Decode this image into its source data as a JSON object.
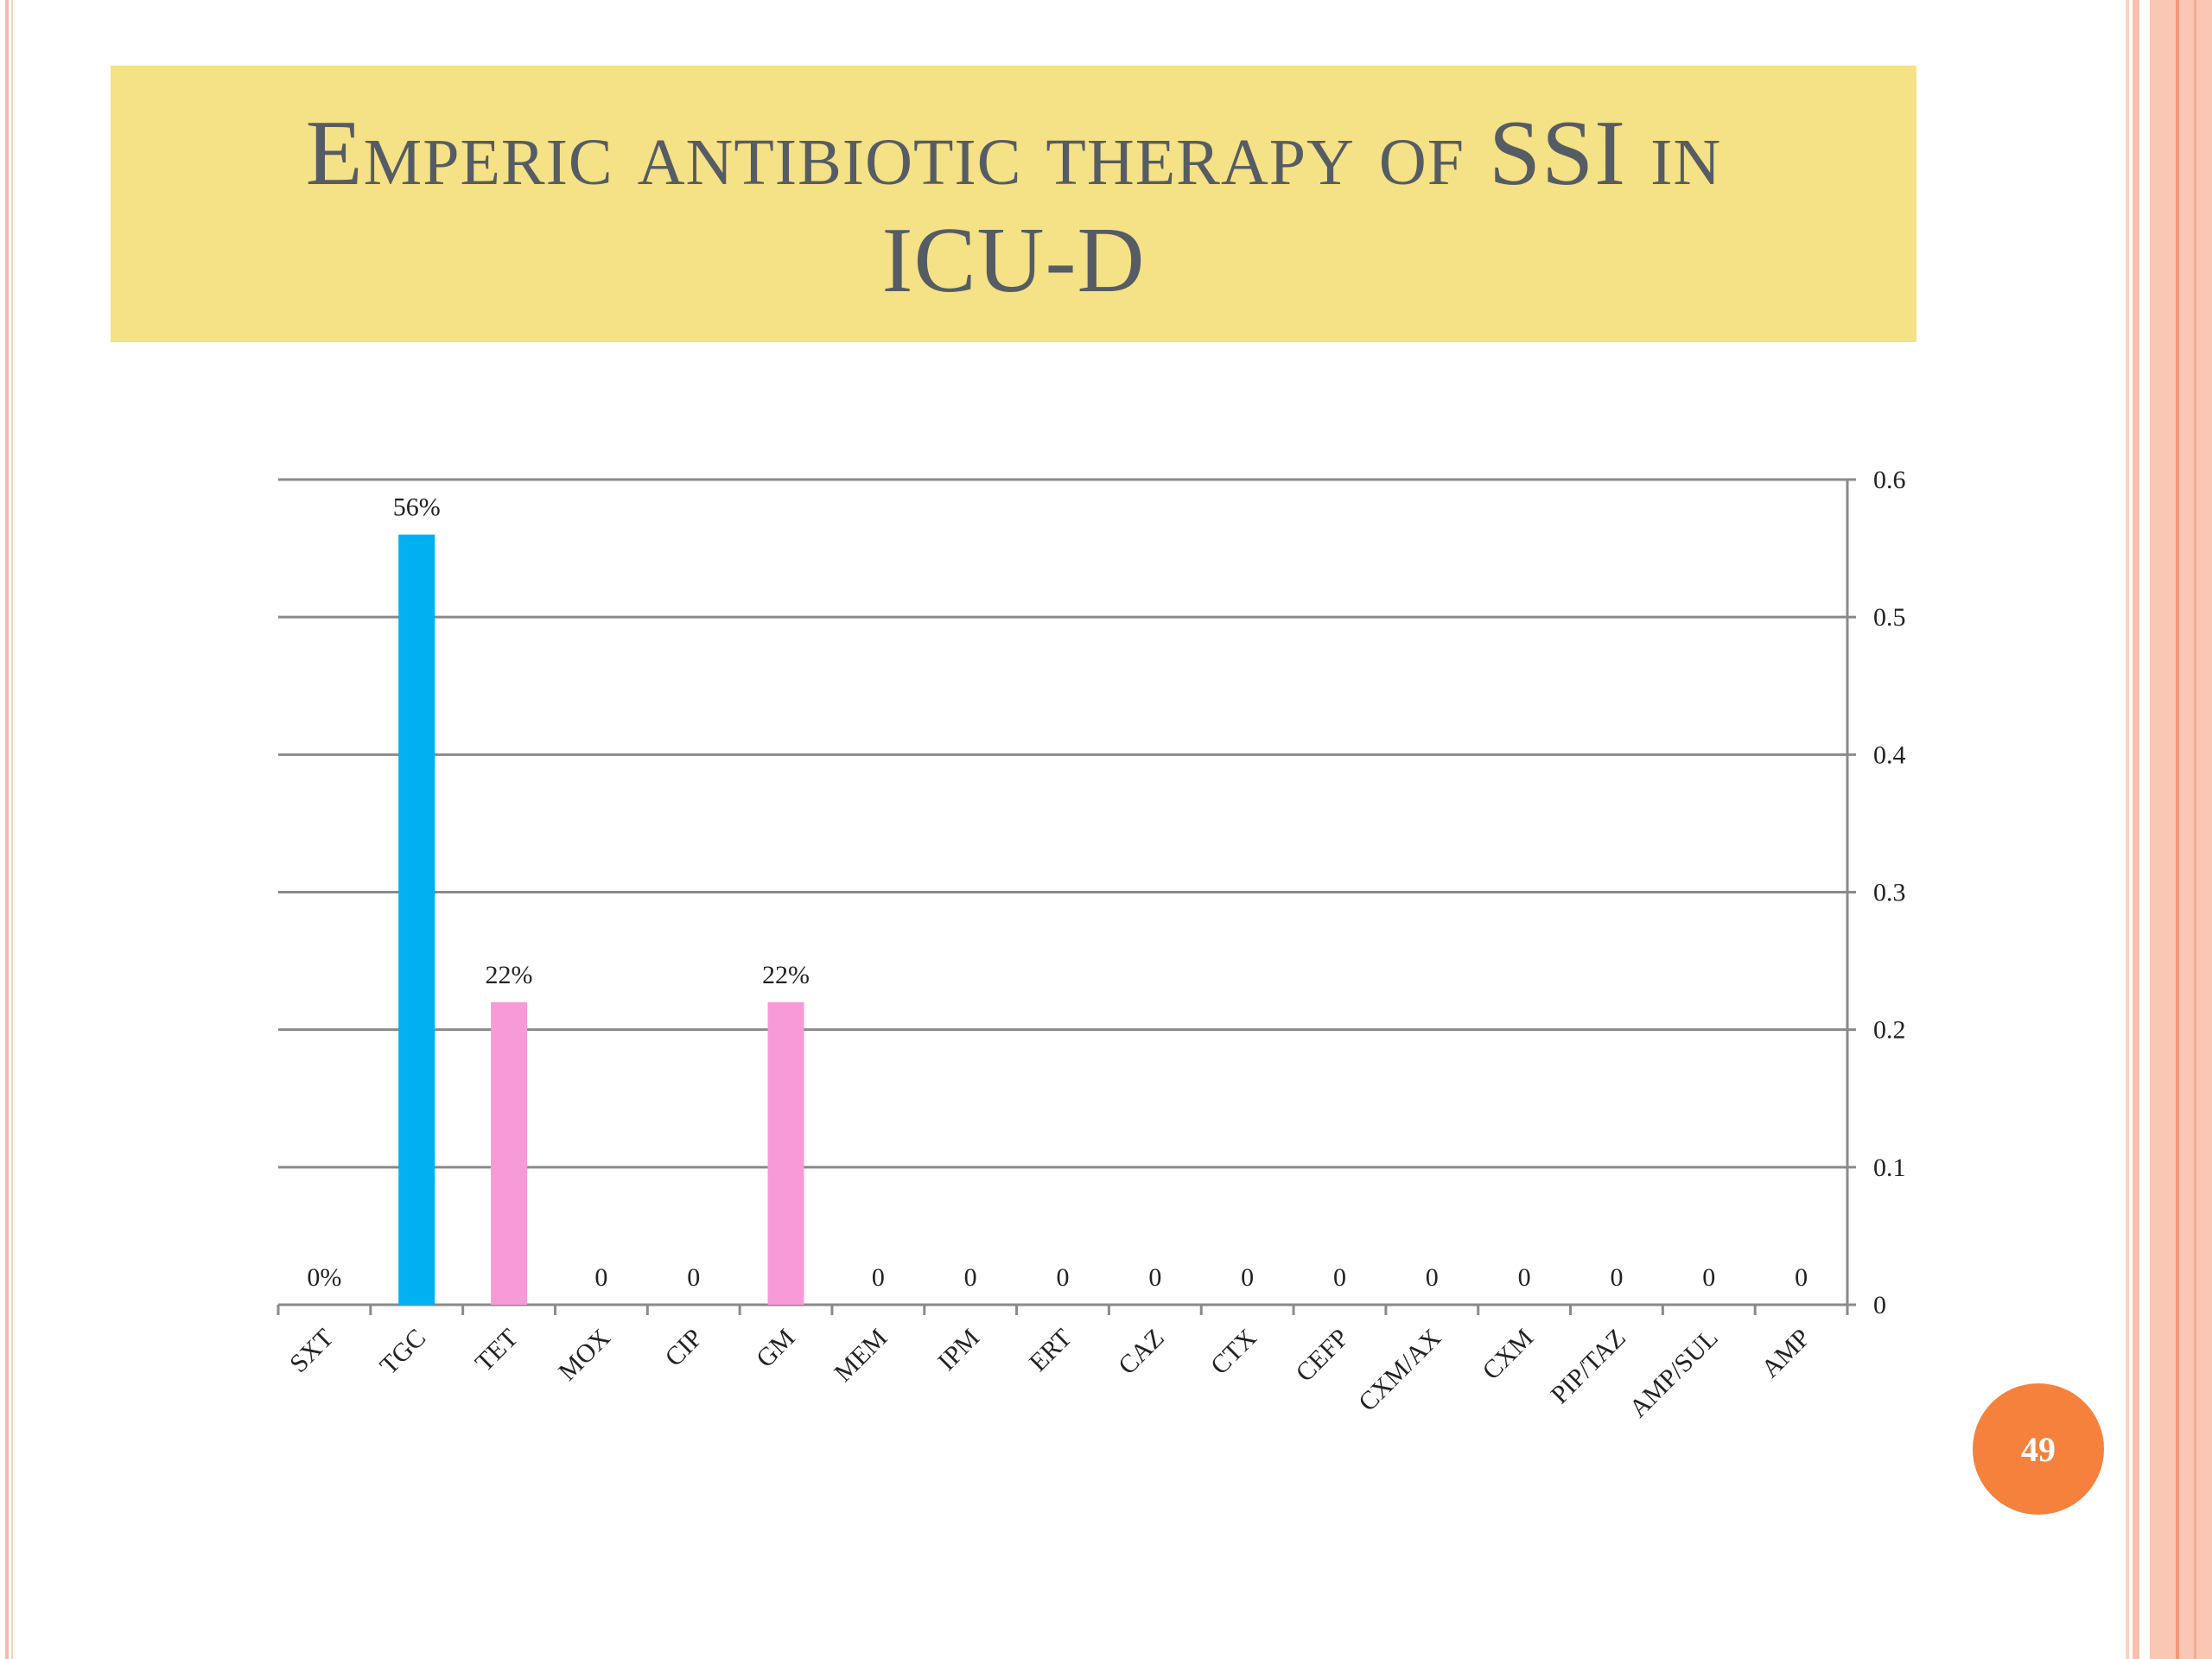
{
  "slide": {
    "title_line1": "Emperic antibiotic therapy of SSI in",
    "title_line2": "ICU-D",
    "page_number": "49"
  },
  "colors": {
    "title_bg": "#f5e186",
    "title_text": "#555c64",
    "bar_blue": "#00b0f0",
    "bar_pink": "#f89ad8",
    "page_badge": "#f5813c"
  },
  "chart_data": {
    "type": "bar",
    "categories": [
      "SXT",
      "TGC",
      "TET",
      "MOX",
      "CIP",
      "GM",
      "MEM",
      "IPM",
      "ERT",
      "CAZ",
      "CTX",
      "CEFP",
      "CXM/AX",
      "CXM",
      "PIP/TAZ",
      "AMP/SUL",
      "AMP"
    ],
    "values": [
      0,
      0.56,
      0.22,
      0,
      0,
      0.22,
      0,
      0,
      0,
      0,
      0,
      0,
      0,
      0,
      0,
      0,
      0
    ],
    "data_labels": [
      "0%",
      "56%",
      "22%",
      "0",
      "0",
      "22%",
      "0",
      "0",
      "0",
      "0",
      "0",
      "0",
      "0",
      "0",
      "0",
      "0",
      "0"
    ],
    "bar_colors": [
      "#00b0f0",
      "#00b0f0",
      "#f89ad8",
      "#f89ad8",
      "#f89ad8",
      "#f89ad8",
      "#f89ad8",
      "#f89ad8",
      "#f89ad8",
      "#f89ad8",
      "#f89ad8",
      "#f89ad8",
      "#f89ad8",
      "#f89ad8",
      "#f89ad8",
      "#f89ad8",
      "#f89ad8"
    ],
    "yaxis_side": "right",
    "ylim": [
      0,
      0.6
    ],
    "yticks": [
      0,
      0.1,
      0.2,
      0.3,
      0.4,
      0.5,
      0.6
    ],
    "ytick_labels": [
      "0",
      "0.1",
      "0.2",
      "0.3",
      "0.4",
      "0.5",
      "0.6"
    ],
    "grid": true,
    "legend": "none",
    "title": "",
    "xlabel": "",
    "ylabel": ""
  }
}
